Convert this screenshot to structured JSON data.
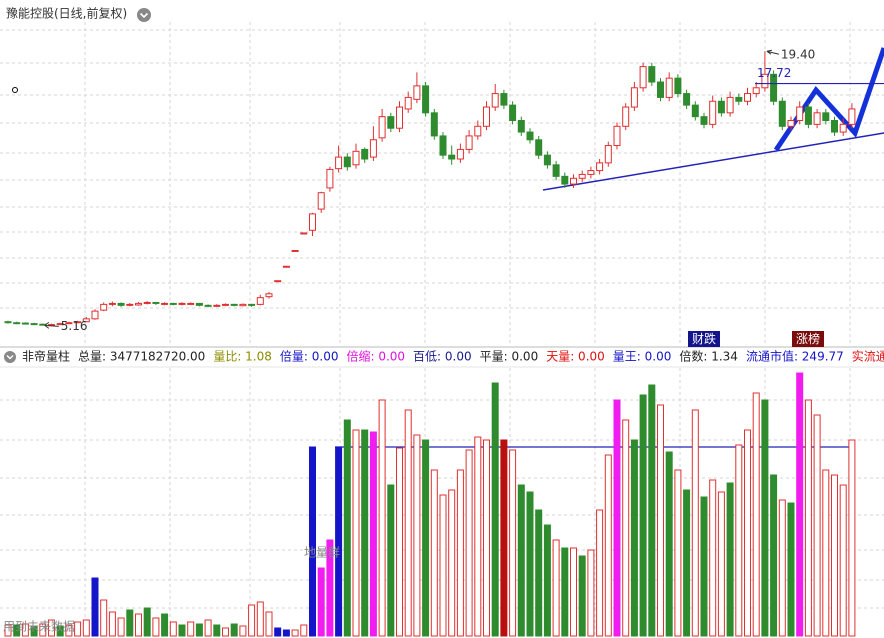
{
  "chart_data": {
    "type": "candlestick",
    "title": "豫能控股(日线,前复权)",
    "ylim": [
      4.4,
      21.8
    ],
    "up_color": "#e03030",
    "down_color": "#2e8b2e",
    "ohlc": [
      [
        5.35,
        5.4,
        5.25,
        5.3
      ],
      [
        5.3,
        5.35,
        5.22,
        5.28
      ],
      [
        5.28,
        5.32,
        5.2,
        5.25
      ],
      [
        5.25,
        5.3,
        5.18,
        5.22
      ],
      [
        5.22,
        5.26,
        5.16,
        5.18
      ],
      [
        5.18,
        5.25,
        5.17,
        5.2
      ],
      [
        5.2,
        5.3,
        5.18,
        5.25
      ],
      [
        5.25,
        5.35,
        5.22,
        5.3
      ],
      [
        5.3,
        5.4,
        5.28,
        5.35
      ],
      [
        5.35,
        5.6,
        5.33,
        5.5
      ],
      [
        5.5,
        6.0,
        5.45,
        5.9
      ],
      [
        5.95,
        6.35,
        5.9,
        6.25
      ],
      [
        6.25,
        6.4,
        6.15,
        6.3
      ],
      [
        6.3,
        6.35,
        6.12,
        6.2
      ],
      [
        6.2,
        6.32,
        6.15,
        6.25
      ],
      [
        6.22,
        6.38,
        6.18,
        6.3
      ],
      [
        6.3,
        6.42,
        6.25,
        6.35
      ],
      [
        6.35,
        6.38,
        6.22,
        6.3
      ],
      [
        6.28,
        6.36,
        6.2,
        6.3
      ],
      [
        6.3,
        6.33,
        6.2,
        6.25
      ],
      [
        6.25,
        6.36,
        6.2,
        6.3
      ],
      [
        6.28,
        6.35,
        6.22,
        6.3
      ],
      [
        6.3,
        6.32,
        6.15,
        6.2
      ],
      [
        6.2,
        6.25,
        6.1,
        6.15
      ],
      [
        6.15,
        6.26,
        6.12,
        6.2
      ],
      [
        6.2,
        6.3,
        6.15,
        6.25
      ],
      [
        6.25,
        6.28,
        6.15,
        6.2
      ],
      [
        6.18,
        6.3,
        6.15,
        6.25
      ],
      [
        6.25,
        6.28,
        6.12,
        6.2
      ],
      [
        6.25,
        6.75,
        6.2,
        6.6
      ],
      [
        6.65,
        6.9,
        6.55,
        6.8
      ],
      [
        7.48,
        7.48,
        7.48,
        7.48
      ],
      [
        8.23,
        8.23,
        8.23,
        8.23
      ],
      [
        9.05,
        9.05,
        9.05,
        9.05
      ],
      [
        9.96,
        9.96,
        9.96,
        9.96
      ],
      [
        10.1,
        11.0,
        9.8,
        10.95
      ],
      [
        11.2,
        12.1,
        11.0,
        12.05
      ],
      [
        12.3,
        13.4,
        12.1,
        13.26
      ],
      [
        13.3,
        14.5,
        13.1,
        13.9
      ],
      [
        13.9,
        14.1,
        13.2,
        13.4
      ],
      [
        13.5,
        14.6,
        13.3,
        14.2
      ],
      [
        14.3,
        14.4,
        13.6,
        13.8
      ],
      [
        13.9,
        15.5,
        13.7,
        14.8
      ],
      [
        14.9,
        16.4,
        14.7,
        16.0
      ],
      [
        16.0,
        16.2,
        15.2,
        15.4
      ],
      [
        15.4,
        16.8,
        15.2,
        16.5
      ],
      [
        16.4,
        17.3,
        16.2,
        17.0
      ],
      [
        16.9,
        18.3,
        16.7,
        17.6
      ],
      [
        17.6,
        17.8,
        16.0,
        16.2
      ],
      [
        16.2,
        16.4,
        14.8,
        15.0
      ],
      [
        15.0,
        15.2,
        13.8,
        14.0
      ],
      [
        14.0,
        14.5,
        13.5,
        13.8
      ],
      [
        13.8,
        14.6,
        13.6,
        14.3
      ],
      [
        14.3,
        15.3,
        14.1,
        15.0
      ],
      [
        15.0,
        15.8,
        14.8,
        15.5
      ],
      [
        15.5,
        16.8,
        15.3,
        16.5
      ],
      [
        16.5,
        17.7,
        16.3,
        17.2
      ],
      [
        17.2,
        17.4,
        16.4,
        16.6
      ],
      [
        16.6,
        16.8,
        15.6,
        15.8
      ],
      [
        15.8,
        16.0,
        15.0,
        15.2
      ],
      [
        15.2,
        15.4,
        14.6,
        14.8
      ],
      [
        14.8,
        15.0,
        13.8,
        14.0
      ],
      [
        14.0,
        14.2,
        13.3,
        13.5
      ],
      [
        13.5,
        13.7,
        12.7,
        12.9
      ],
      [
        12.9,
        13.1,
        12.3,
        12.5
      ],
      [
        12.5,
        13.0,
        12.3,
        12.8
      ],
      [
        12.8,
        13.2,
        12.6,
        13.0
      ],
      [
        13.0,
        13.4,
        12.8,
        13.2
      ],
      [
        13.2,
        13.8,
        13.0,
        13.6
      ],
      [
        13.6,
        14.7,
        13.4,
        14.5
      ],
      [
        14.5,
        15.7,
        14.3,
        15.5
      ],
      [
        15.5,
        16.7,
        15.3,
        16.5
      ],
      [
        16.5,
        17.8,
        16.3,
        17.5
      ],
      [
        17.5,
        18.8,
        17.3,
        18.6
      ],
      [
        18.6,
        18.8,
        17.6,
        17.8
      ],
      [
        17.8,
        18.0,
        16.8,
        17.0
      ],
      [
        17.0,
        18.3,
        16.8,
        18.0
      ],
      [
        18.0,
        18.2,
        17.0,
        17.2
      ],
      [
        17.2,
        17.4,
        16.4,
        16.6
      ],
      [
        16.6,
        16.8,
        15.8,
        16.0
      ],
      [
        16.0,
        16.2,
        15.4,
        15.6
      ],
      [
        15.6,
        17.1,
        15.4,
        16.8
      ],
      [
        16.8,
        17.0,
        16.0,
        16.2
      ],
      [
        16.2,
        17.3,
        16.0,
        17.0
      ],
      [
        17.0,
        17.2,
        16.6,
        16.8
      ],
      [
        16.8,
        17.5,
        16.6,
        17.2
      ],
      [
        17.2,
        17.8,
        17.0,
        17.5
      ],
      [
        17.5,
        19.4,
        17.3,
        18.2
      ],
      [
        18.2,
        18.4,
        16.6,
        16.8
      ],
      [
        16.8,
        17.0,
        15.3,
        15.5
      ],
      [
        15.5,
        16.0,
        15.3,
        15.8
      ],
      [
        15.8,
        16.8,
        15.6,
        16.5
      ],
      [
        16.5,
        16.7,
        15.4,
        15.6
      ],
      [
        15.6,
        16.4,
        15.4,
        16.2
      ],
      [
        16.2,
        16.4,
        15.6,
        15.8
      ],
      [
        15.8,
        16.0,
        15.0,
        15.2
      ],
      [
        15.2,
        15.9,
        15.0,
        15.6
      ],
      [
        15.6,
        16.7,
        15.4,
        16.4
      ]
    ],
    "annotations": [
      {
        "label": "19.40",
        "value": 19.4
      },
      {
        "label": "17.72",
        "value": 17.72
      },
      {
        "label": "5.16",
        "value": 5.16
      }
    ],
    "badges": [
      "财跌",
      "涨榜"
    ],
    "volume_title": "非帝量柱",
    "volume_header": [
      {
        "text": "总量: 3477182720.00",
        "color": "#222222"
      },
      {
        "text": "量比: 1.08",
        "color": "#8c8c00"
      },
      {
        "text": "倍量: 0.00",
        "color": "#1414c8"
      },
      {
        "text": "倍缩: 0.00",
        "color": "#e010e0"
      },
      {
        "text": "百低: 0.00",
        "color": "#1a1a90"
      },
      {
        "text": "平量: 0.00",
        "color": "#222222"
      },
      {
        "text": "天量: 0.00",
        "color": "#e01010"
      },
      {
        "text": "量王: 0.00",
        "color": "#1414c8"
      },
      {
        "text": "倍数: 1.34",
        "color": "#222222"
      },
      {
        "text": "流通市值: 249.77",
        "color": "#1414c8"
      },
      {
        "text": "实流通市值:",
        "color": "#e01010"
      }
    ],
    "vlim": [
      0,
      268
    ],
    "hollow_color": "#e03030",
    "volume": [
      11,
      11,
      12,
      10,
      12,
      16,
      10,
      11,
      14,
      16,
      58,
      36,
      24,
      18,
      26,
      22,
      28,
      18,
      22,
      14,
      11,
      14,
      12,
      16,
      11,
      8,
      12,
      10,
      31,
      34,
      24,
      8,
      6,
      6,
      11,
      189,
      68,
      96,
      189,
      216,
      206,
      206,
      204,
      236,
      151,
      188,
      226,
      201,
      196,
      166,
      141,
      146,
      166,
      186,
      199,
      196,
      253,
      196,
      186,
      151,
      144,
      126,
      111,
      96,
      88,
      88,
      80,
      86,
      126,
      181,
      236,
      216,
      196,
      241,
      251,
      231,
      184,
      166,
      146,
      226,
      139,
      156,
      144,
      153,
      191,
      206,
      243,
      236,
      161,
      136,
      133,
      263,
      236,
      221,
      166,
      161,
      151,
      196
    ],
    "volume_colors": [
      "#e03030",
      "#2e8b2e",
      "#e03030",
      "#2e8b2e",
      "#e03030",
      "#e03030",
      "#2e8b2e",
      "#e03030",
      "#e03030",
      "#e03030",
      "#1414c8",
      "#e03030",
      "#e03030",
      "#e03030",
      "#2e8b2e",
      "#e03030",
      "#2e8b2e",
      "#e03030",
      "#2e8b2e",
      "#e03030",
      "#2e8b2e",
      "#e03030",
      "#2e8b2e",
      "#e03030",
      "#2e8b2e",
      "#e03030",
      "#2e8b2e",
      "#e03030",
      "#e03030",
      "#e03030",
      "#e03030",
      "#1414c8",
      "#1414c8",
      "#e03030",
      "#e03030",
      "#1414c8",
      "#f01cf0",
      "#f01cf0",
      "#1414c8",
      "#2e8b2e",
      "#e03030",
      "#2e8b2e",
      "#f01cf0",
      "#e03030",
      "#2e8b2e",
      "#e03030",
      "#e03030",
      "#e03030",
      "#2e8b2e",
      "#e03030",
      "#e03030",
      "#e03030",
      "#e03030",
      "#e03030",
      "#e03030",
      "#e03030",
      "#2e8b2e",
      "#b80f0f",
      "#e03030",
      "#2e8b2e",
      "#2e8b2e",
      "#2e8b2e",
      "#2e8b2e",
      "#e03030",
      "#2e8b2e",
      "#e03030",
      "#2e8b2e",
      "#e03030",
      "#e03030",
      "#e03030",
      "#f01cf0",
      "#e03030",
      "#2e8b2e",
      "#2e8b2e",
      "#2e8b2e",
      "#e03030",
      "#2e8b2e",
      "#e03030",
      "#2e8b2e",
      "#e03030",
      "#2e8b2e",
      "#e03030",
      "#e03030",
      "#2e8b2e",
      "#e03030",
      "#e03030",
      "#e03030",
      "#2e8b2e",
      "#2e8b2e",
      "#e03030",
      "#2e8b2e",
      "#f01cf0",
      "#e03030",
      "#e03030",
      "#e03030",
      "#e03030",
      "#e03030",
      "#e03030"
    ],
    "notes": [
      "地量群",
      "用到未来数据"
    ]
  }
}
